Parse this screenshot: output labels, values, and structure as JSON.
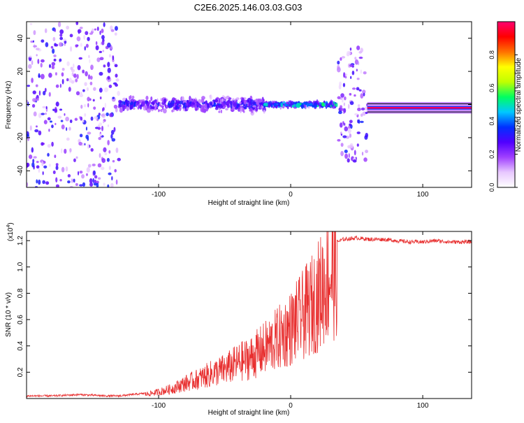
{
  "figure": {
    "title": "C2E6.2025.146.03.03.G03"
  },
  "chart_data": [
    {
      "type": "heatmap",
      "xlabel": "Height of straight line (km)",
      "ylabel": "Frequency (Hz)",
      "xlim": [
        -200,
        137
      ],
      "ylim": [
        -50,
        50
      ],
      "xticks": [
        -100,
        0,
        100
      ],
      "yticks": [
        -40,
        -20,
        0,
        20,
        40
      ],
      "grid": false,
      "colorbar": {
        "label": "Normalized spectral amplitude",
        "range": [
          0,
          1
        ],
        "ticks": [
          0.0,
          0.2,
          0.4,
          0.6,
          0.8
        ],
        "colormap": [
          "#ffffff",
          "#e8c8ff",
          "#a040ff",
          "#5000ff",
          "#0030ff",
          "#00c8ff",
          "#00ff60",
          "#c0ff00",
          "#ffff00",
          "#ff7000",
          "#ff0000",
          "#ff0070"
        ]
      },
      "segments": [
        {
          "x_range": [
            -200,
            -130
          ],
          "freq_spread": 50,
          "amplitude": 0.15,
          "pattern": "broadband noise"
        },
        {
          "x_range": [
            -130,
            -20
          ],
          "freq_spread": 6,
          "amplitude": 0.4,
          "pattern": "narrowing band around 0 Hz"
        },
        {
          "x_range": [
            -20,
            35
          ],
          "freq_spread": 2,
          "amplitude": 0.6,
          "pattern": "narrow line near 0 Hz"
        },
        {
          "x_range": [
            36,
            58
          ],
          "freq_spread": 35,
          "amplitude": 0.2,
          "pattern": "vertical broadband streaks"
        },
        {
          "x_range": [
            58,
            137
          ],
          "freq_spread": 1.5,
          "amplitude": 1.0,
          "pattern": "strong carrier line at -2 Hz"
        }
      ]
    },
    {
      "type": "line",
      "xlabel": "Height of straight line (km)",
      "ylabel": "SNR (10 * v/v)",
      "y_multiplier": "(x10",
      "y_multiplier_exp": "4",
      "y_multiplier_close": ")",
      "xlim": [
        -200,
        137
      ],
      "ylim": [
        0,
        1.27
      ],
      "xticks": [
        -100,
        0,
        100
      ],
      "yticks": [
        0.2,
        0.4,
        0.6,
        0.8,
        1.0,
        1.2
      ],
      "grid": false,
      "color": "#e83030",
      "series": [
        {
          "x": [
            -200,
            -180,
            -160,
            -140,
            -130,
            -120,
            -110,
            -100,
            -90,
            -80,
            -70,
            -60,
            -50,
            -40,
            -30,
            -20,
            -10,
            0,
            10,
            15,
            20,
            25,
            30,
            35,
            40,
            50,
            60,
            70,
            80,
            90,
            100,
            110,
            120,
            137
          ],
          "values": [
            0.02,
            0.02,
            0.03,
            0.02,
            0.02,
            0.03,
            0.04,
            0.06,
            0.09,
            0.14,
            0.18,
            0.23,
            0.27,
            0.33,
            0.38,
            0.46,
            0.55,
            0.65,
            0.78,
            0.85,
            0.93,
            1.05,
            1.15,
            1.19,
            1.21,
            1.22,
            1.21,
            1.21,
            1.2,
            1.19,
            1.19,
            1.2,
            1.19,
            1.19
          ]
        }
      ]
    }
  ]
}
